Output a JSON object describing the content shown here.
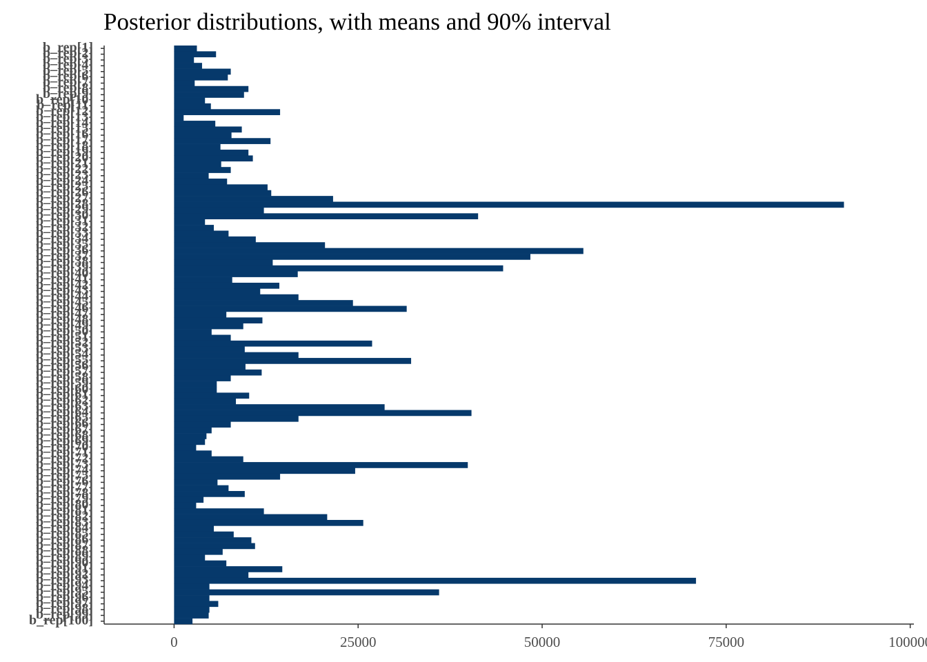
{
  "chart_data": {
    "type": "barh",
    "title": "Posterior distributions, with means and 90% interval",
    "categories": [
      "b_rep[1]",
      "b_rep[2]",
      "b_rep[3]",
      "b_rep[4]",
      "b_rep[5]",
      "b_rep[6]",
      "b_rep[7]",
      "b_rep[8]",
      "b_rep[9]",
      "b_rep[10]",
      "b_rep[11]",
      "b_rep[12]",
      "b_rep[13]",
      "b_rep[14]",
      "b_rep[15]",
      "b_rep[16]",
      "b_rep[17]",
      "b_rep[18]",
      "b_rep[19]",
      "b_rep[20]",
      "b_rep[21]",
      "b_rep[22]",
      "b_rep[23]",
      "b_rep[24]",
      "b_rep[25]",
      "b_rep[26]",
      "b_rep[27]",
      "b_rep[28]",
      "b_rep[29]",
      "b_rep[30]",
      "b_rep[31]",
      "b_rep[32]",
      "b_rep[33]",
      "b_rep[34]",
      "b_rep[35]",
      "b_rep[36]",
      "b_rep[37]",
      "b_rep[38]",
      "b_rep[39]",
      "b_rep[40]",
      "b_rep[41]",
      "b_rep[42]",
      "b_rep[43]",
      "b_rep[44]",
      "b_rep[45]",
      "b_rep[46]",
      "b_rep[47]",
      "b_rep[48]",
      "b_rep[49]",
      "b_rep[50]",
      "b_rep[51]",
      "b_rep[52]",
      "b_rep[53]",
      "b_rep[54]",
      "b_rep[55]",
      "b_rep[56]",
      "b_rep[57]",
      "b_rep[58]",
      "b_rep[59]",
      "b_rep[60]",
      "b_rep[61]",
      "b_rep[62]",
      "b_rep[63]",
      "b_rep[64]",
      "b_rep[65]",
      "b_rep[66]",
      "b_rep[67]",
      "b_rep[68]",
      "b_rep[69]",
      "b_rep[70]",
      "b_rep[71]",
      "b_rep[72]",
      "b_rep[73]",
      "b_rep[74]",
      "b_rep[75]",
      "b_rep[76]",
      "b_rep[77]",
      "b_rep[78]",
      "b_rep[79]",
      "b_rep[80]",
      "b_rep[81]",
      "b_rep[82]",
      "b_rep[83]",
      "b_rep[84]",
      "b_rep[85]",
      "b_rep[86]",
      "b_rep[87]",
      "b_rep[88]",
      "b_rep[89]",
      "b_rep[90]",
      "b_rep[91]",
      "b_rep[92]",
      "b_rep[93]",
      "b_rep[94]",
      "b_rep[95]",
      "b_rep[96]",
      "b_rep[97]",
      "b_rep[98]",
      "b_rep[99]",
      "b_rep[100]"
    ],
    "values": [
      3100,
      5700,
      2700,
      3800,
      7700,
      7300,
      2800,
      10100,
      9500,
      4200,
      5000,
      14400,
      1300,
      5600,
      9200,
      7800,
      13100,
      6300,
      10100,
      10700,
      6400,
      7700,
      4700,
      7200,
      12700,
      13200,
      21600,
      91000,
      12200,
      41300,
      4200,
      5400,
      7400,
      11100,
      20500,
      55600,
      48400,
      13400,
      44700,
      16800,
      7900,
      14300,
      11700,
      16900,
      24300,
      31600,
      7100,
      12000,
      9400,
      5100,
      7700,
      26900,
      9600,
      16900,
      32200,
      9700,
      11900,
      7700,
      5800,
      5800,
      10200,
      8400,
      28600,
      40400,
      16900,
      7700,
      5100,
      4400,
      4200,
      3000,
      5100,
      9400,
      39900,
      24600,
      14400,
      5900,
      7400,
      9600,
      4000,
      3000,
      12200,
      20800,
      25700,
      5400,
      8100,
      10500,
      11000,
      6600,
      4200,
      7100,
      14700,
      10100,
      70900,
      4800,
      36000,
      4800,
      6000,
      4800,
      4700,
      2500
    ],
    "color": "#06396b",
    "xlim": [
      -9500,
      100500
    ],
    "xticks": [
      0,
      25000,
      50000,
      75000,
      100000
    ]
  }
}
